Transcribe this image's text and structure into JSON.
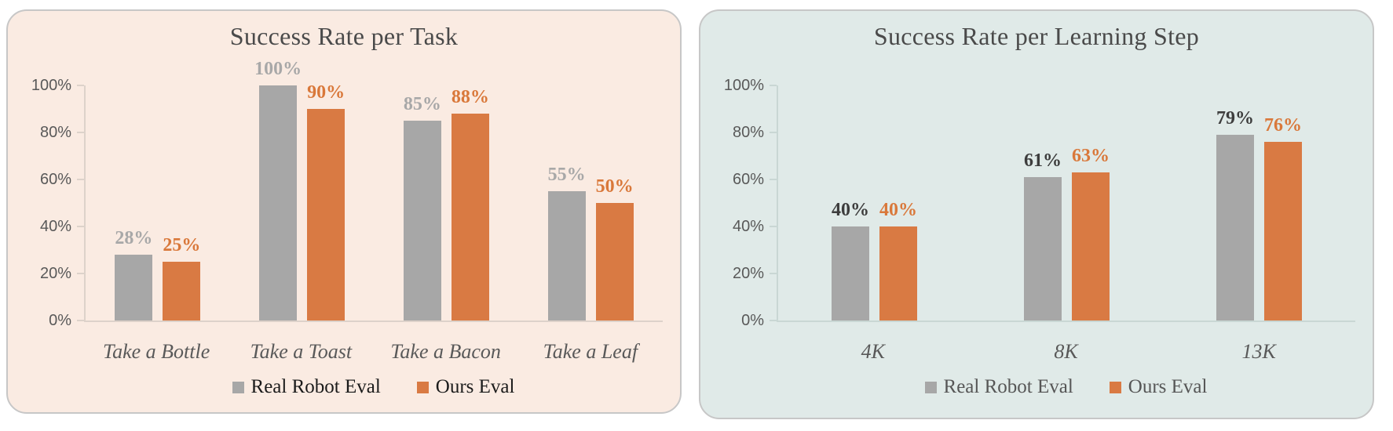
{
  "page": {
    "background": "#ffffff"
  },
  "chart_data": [
    {
      "type": "bar",
      "title": "Success Rate per Task",
      "categories": [
        "Take a Bottle",
        "Take a Toast",
        "Take a Bacon",
        "Take a Leaf"
      ],
      "series": [
        {
          "name": "Real Robot Eval",
          "values": [
            28,
            100,
            85,
            55
          ],
          "color": "#a7a7a7",
          "label_color": "#a8a8a8"
        },
        {
          "name": "Ours Eval",
          "values": [
            25,
            90,
            88,
            50
          ],
          "color": "#d97a43",
          "label_color": "#d9783a"
        }
      ],
      "xlabel": "",
      "ylabel": "",
      "ylim": [
        0,
        100
      ],
      "yticks": [
        "0%",
        "20%",
        "40%",
        "60%",
        "80%",
        "100%"
      ],
      "grid": false,
      "legend_position": "bottom",
      "data_label_suffix": "%",
      "style": {
        "panel_bg": "#faebe2",
        "panel_border": "#c7c7c7",
        "axis_color": "#ddd2ca",
        "title_color": "#4a4a4a",
        "tick_label_color": "#595959",
        "category_label_color": "#595959",
        "legend_text_color": "#1b1b1b"
      }
    },
    {
      "type": "bar",
      "title": "Success Rate per Learning Step",
      "categories": [
        "4K",
        "8K",
        "13K"
      ],
      "series": [
        {
          "name": "Real Robot Eval",
          "values": [
            40,
            61,
            79
          ],
          "color": "#a7a7a7",
          "label_color": "#3d3d3d"
        },
        {
          "name": "Ours Eval",
          "values": [
            40,
            63,
            76
          ],
          "color": "#d97a43",
          "label_color": "#d9783a"
        }
      ],
      "xlabel": "",
      "ylabel": "",
      "ylim": [
        0,
        100
      ],
      "yticks": [
        "0%",
        "20%",
        "40%",
        "60%",
        "80%",
        "100%"
      ],
      "grid": false,
      "legend_position": "bottom",
      "data_label_suffix": "%",
      "style": {
        "panel_bg": "#e0eae8",
        "panel_border": "#c7c7c7",
        "axis_color": "#c9d7d4",
        "title_color": "#4a4a4a",
        "tick_label_color": "#595959",
        "category_label_color": "#595959",
        "legend_text_color": "#565656"
      }
    }
  ]
}
